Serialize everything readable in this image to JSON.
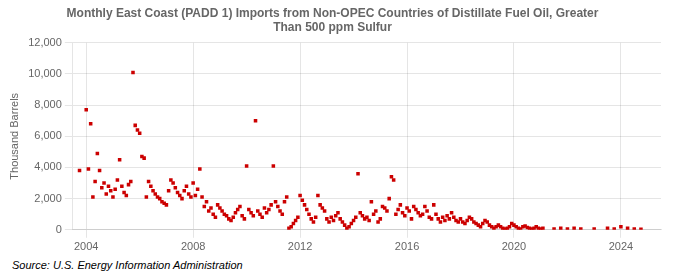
{
  "chart_data": {
    "type": "scatter",
    "title": "Monthly East Coast (PADD 1) Imports from Non-OPEC Countries of Distillate Fuel Oil, Greater\nThan 500 ppm Sulfur",
    "ylabel": "Thousand Barrels",
    "source": "Source: U.S. Energy Information Administration",
    "color": "#cc0000",
    "marker": "square",
    "grid": true,
    "xlim": [
      2003.5,
      2025.5
    ],
    "xticks": [
      2004,
      2008,
      2012,
      2016,
      2020,
      2024
    ],
    "ylim": [
      0,
      12000
    ],
    "yticks": [
      0,
      {
        "value": 2000,
        "label": "2,000"
      },
      {
        "value": 4000,
        "label": "4,000"
      },
      {
        "value": 6000,
        "label": "6,000"
      },
      {
        "value": 8000,
        "label": "8,000"
      },
      {
        "value": 10000,
        "label": "10,000"
      },
      {
        "value": 12000,
        "label": "12,000"
      }
    ],
    "x": [
      2003.75,
      2004.0,
      2004.083,
      2004.167,
      2004.25,
      2004.333,
      2004.417,
      2004.5,
      2004.583,
      2004.667,
      2004.75,
      2004.833,
      2004.917,
      2005.0,
      2005.083,
      2005.167,
      2005.25,
      2005.333,
      2005.417,
      2005.5,
      2005.583,
      2005.667,
      2005.75,
      2005.833,
      2005.917,
      2006.0,
      2006.083,
      2006.167,
      2006.25,
      2006.333,
      2006.417,
      2006.5,
      2006.583,
      2006.667,
      2006.75,
      2006.833,
      2006.917,
      2007.0,
      2007.083,
      2007.167,
      2007.25,
      2007.333,
      2007.417,
      2007.5,
      2007.583,
      2007.667,
      2007.75,
      2007.833,
      2007.917,
      2008.0,
      2008.083,
      2008.167,
      2008.25,
      2008.333,
      2008.417,
      2008.5,
      2008.583,
      2008.667,
      2008.75,
      2008.833,
      2008.917,
      2009.0,
      2009.083,
      2009.167,
      2009.25,
      2009.333,
      2009.417,
      2009.5,
      2009.583,
      2009.667,
      2009.75,
      2009.833,
      2009.917,
      2010.0,
      2010.083,
      2010.167,
      2010.25,
      2010.333,
      2010.417,
      2010.5,
      2010.583,
      2010.667,
      2010.75,
      2010.833,
      2010.917,
      2011.0,
      2011.083,
      2011.167,
      2011.25,
      2011.333,
      2011.417,
      2011.5,
      2011.583,
      2011.667,
      2011.75,
      2011.833,
      2011.917,
      2012.0,
      2012.083,
      2012.167,
      2012.25,
      2012.333,
      2012.417,
      2012.5,
      2012.583,
      2012.667,
      2012.75,
      2012.833,
      2012.917,
      2013.0,
      2013.083,
      2013.167,
      2013.25,
      2013.333,
      2013.417,
      2013.5,
      2013.583,
      2013.667,
      2013.75,
      2013.833,
      2013.917,
      2014.0,
      2014.083,
      2014.167,
      2014.25,
      2014.333,
      2014.417,
      2014.5,
      2014.583,
      2014.667,
      2014.75,
      2014.833,
      2014.917,
      2015.0,
      2015.083,
      2015.167,
      2015.25,
      2015.333,
      2015.417,
      2015.5,
      2015.583,
      2015.667,
      2015.75,
      2015.833,
      2015.917,
      2016.0,
      2016.083,
      2016.167,
      2016.25,
      2016.333,
      2016.417,
      2016.5,
      2016.583,
      2016.667,
      2016.75,
      2016.833,
      2016.917,
      2017.0,
      2017.083,
      2017.167,
      2017.25,
      2017.333,
      2017.417,
      2017.5,
      2017.583,
      2017.667,
      2017.75,
      2017.833,
      2017.917,
      2018.0,
      2018.083,
      2018.167,
      2018.25,
      2018.333,
      2018.417,
      2018.5,
      2018.583,
      2018.667,
      2018.75,
      2018.833,
      2018.917,
      2019.0,
      2019.083,
      2019.167,
      2019.25,
      2019.333,
      2019.417,
      2019.5,
      2019.583,
      2019.667,
      2019.75,
      2019.833,
      2019.917,
      2020.0,
      2020.083,
      2020.167,
      2020.25,
      2020.333,
      2020.417,
      2020.5,
      2020.583,
      2020.667,
      2020.75,
      2020.833,
      2020.917,
      2021.0,
      2021.083,
      2021.5,
      2021.75,
      2022.0,
      2022.25,
      2022.5,
      2023.0,
      2023.5,
      2023.75,
      2024.0,
      2024.25,
      2024.5,
      2024.75
    ],
    "values": [
      3800,
      7700,
      3900,
      6800,
      2100,
      3100,
      4900,
      3800,
      2700,
      3000,
      2300,
      2800,
      2500,
      2100,
      2600,
      3200,
      4500,
      2800,
      2400,
      2200,
      2900,
      3100,
      10100,
      6700,
      6400,
      6200,
      4700,
      4600,
      2100,
      3100,
      2800,
      2500,
      2300,
      2100,
      2000,
      1800,
      1700,
      1600,
      2500,
      3200,
      3000,
      2700,
      2400,
      2200,
      2000,
      2500,
      2800,
      2300,
      2100,
      3000,
      2200,
      2600,
      3900,
      2100,
      1500,
      1800,
      1200,
      1400,
      1000,
      800,
      1600,
      1400,
      1200,
      1000,
      900,
      700,
      600,
      800,
      1100,
      1300,
      1500,
      900,
      700,
      4100,
      1300,
      1100,
      900,
      7000,
      1200,
      1000,
      800,
      1400,
      1100,
      1300,
      1600,
      4100,
      1800,
      1500,
      1200,
      1000,
      1800,
      2100,
      100,
      200,
      400,
      600,
      800,
      2200,
      1900,
      1600,
      1300,
      1000,
      700,
      500,
      800,
      2200,
      1600,
      1400,
      1200,
      700,
      500,
      800,
      600,
      900,
      1100,
      700,
      500,
      300,
      100,
      200,
      400,
      600,
      800,
      3600,
      1100,
      900,
      700,
      800,
      600,
      1800,
      1000,
      1200,
      500,
      700,
      1500,
      1400,
      1200,
      2000,
      3400,
      3200,
      1000,
      1300,
      1600,
      1100,
      900,
      1400,
      1200,
      700,
      1500,
      1300,
      1100,
      900,
      1000,
      1500,
      1200,
      800,
      700,
      1600,
      1000,
      700,
      500,
      800,
      600,
      900,
      700,
      1100,
      800,
      600,
      500,
      700,
      500,
      400,
      600,
      800,
      700,
      500,
      400,
      300,
      200,
      400,
      600,
      500,
      300,
      200,
      100,
      200,
      300,
      200,
      100,
      50,
      100,
      200,
      400,
      300,
      200,
      100,
      50,
      200,
      250,
      150,
      100,
      50,
      100,
      200,
      100,
      50,
      100,
      50,
      100,
      50,
      100,
      50,
      50,
      100,
      50,
      200,
      100,
      50,
      30
    ]
  }
}
